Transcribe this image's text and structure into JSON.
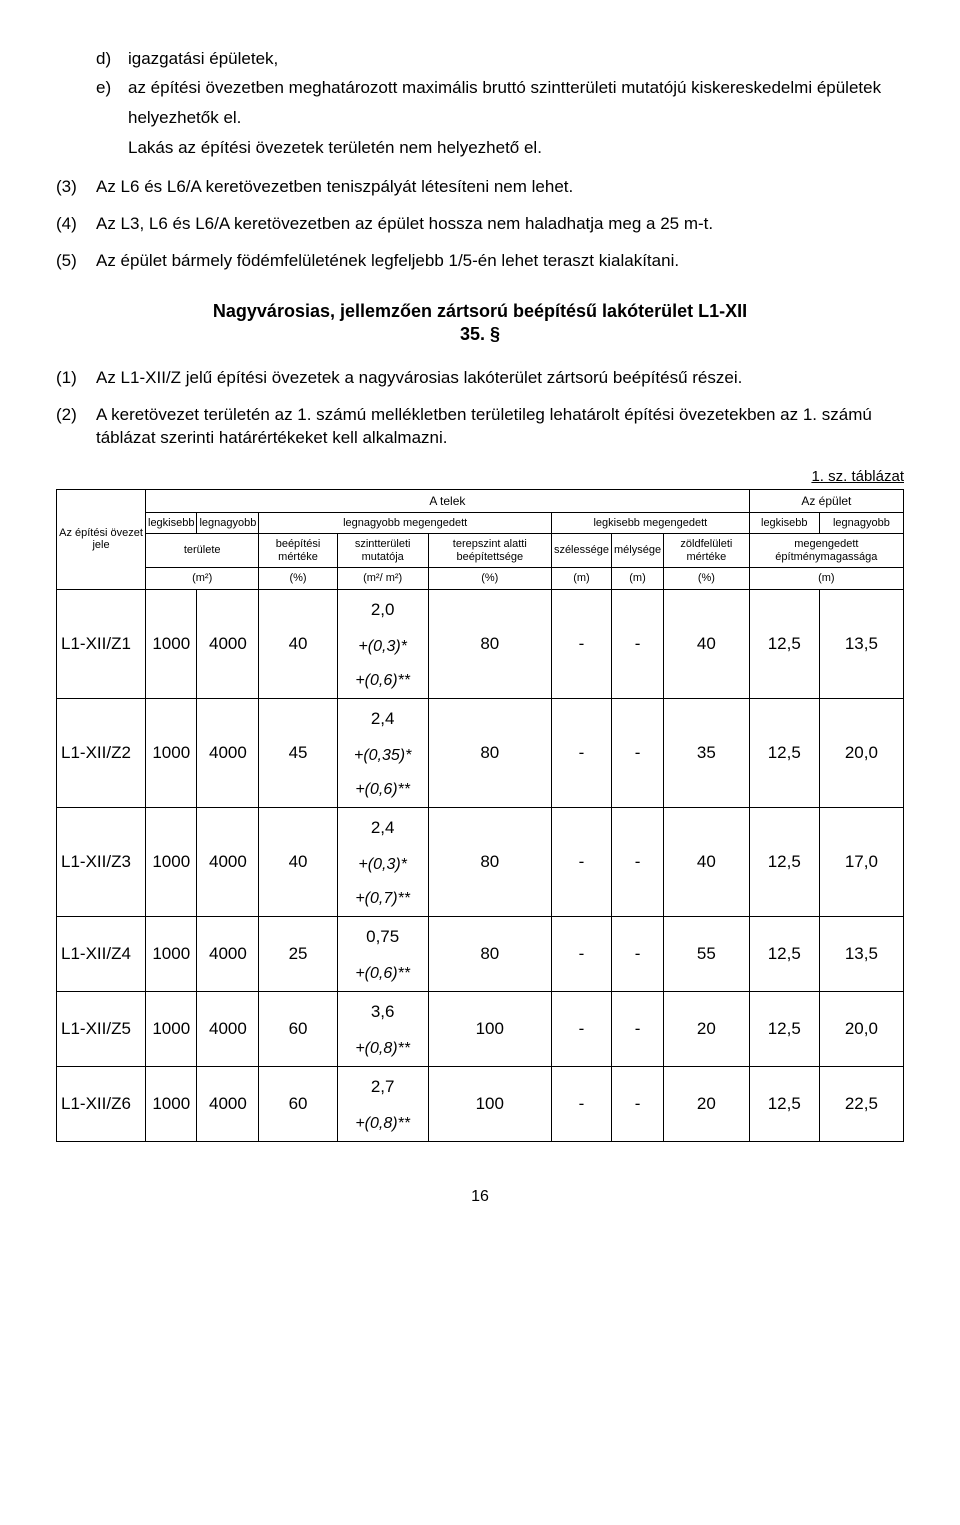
{
  "list_d": {
    "marker": "d)",
    "text": "igazgatási épületek,"
  },
  "list_e": {
    "marker": "e)",
    "text": "az építési övezetben meghatározott maximális bruttó szintterületi mutatójú kiskereskedelmi épületek"
  },
  "after_e1": "helyezhetők el.",
  "after_e2": "Lakás az építési övezetek területén nem helyezhető el.",
  "p3": {
    "marker": "(3)",
    "text": "Az L6 és L6/A keretövezetben  teniszpályát létesíteni nem lehet."
  },
  "p4": {
    "marker": "(4)",
    "text": "Az L3, L6 és L6/A keretövezetben az épület hossza nem haladhatja meg a 25 m-t."
  },
  "p5": {
    "marker": "(5)",
    "text": "Az épület bármely födémfelületének legfeljebb 1/5-én lehet teraszt kialakítani."
  },
  "section_title": "Nagyvárosias, jellemzően zártsorú beépítésű lakóterület L1-XII",
  "section_num": "35. §",
  "p1b": {
    "marker": "(1)",
    "text": "Az L1-XII/Z jelű építési övezetek a nagyvárosias lakóterület zártsorú beépítésű részei."
  },
  "p2b": {
    "marker": "(2)",
    "text": "A keretövezet területén az 1. számú mellékletben területileg lehatárolt építési övezetekben az 1. számú táblázat szerinti határértékeket kell alkalmazni."
  },
  "table_caption": "1. sz. táblázat",
  "headers": {
    "rowlabel": "Az építési övezet jele",
    "telek": "A telek",
    "epulet": "Az épület",
    "legkisebb": "legkisebb",
    "legnagyobb": "legnagyobb",
    "legnagyobb_m": "legnagyobb megengedett",
    "legkisebb_m": "legkisebb megengedett",
    "terulete": "területe",
    "beepitesi": "beépítési mértéke",
    "szint": "szintterületi mutatója",
    "terepszint": "terepszint alatti beépítettsége",
    "szelesseg": "szélessége",
    "melyseg": "mélysége",
    "zold": "zöldfelületi mértéke",
    "megengedett": "megengedett építménymagassága",
    "m2": "(m²)",
    "pct": "(%)",
    "m2m2": "(m²/ m²)",
    "m": "(m)"
  },
  "rows": [
    {
      "zone": "L1-XII/Z1",
      "c1": "1000",
      "c2": "4000",
      "c3": "40",
      "c4": "2,0",
      "c5": "80",
      "c6": "-",
      "c7": "-",
      "c8": "40",
      "c9": "12,5",
      "c10": "13,5",
      "sub": [
        "+(0,3)*",
        "+(0,6)**"
      ]
    },
    {
      "zone": "L1-XII/Z2",
      "c1": "1000",
      "c2": "4000",
      "c3": "45",
      "c4": "2,4",
      "c5": "80",
      "c6": "-",
      "c7": "-",
      "c8": "35",
      "c9": "12,5",
      "c10": "20,0",
      "sub": [
        "+(0,35)*",
        "+(0,6)**"
      ]
    },
    {
      "zone": "L1-XII/Z3",
      "c1": "1000",
      "c2": "4000",
      "c3": "40",
      "c4": "2,4",
      "c5": "80",
      "c6": "-",
      "c7": "-",
      "c8": "40",
      "c9": "12,5",
      "c10": "17,0",
      "sub": [
        "+(0,3)*",
        "+(0,7)**"
      ]
    },
    {
      "zone": "L1-XII/Z4",
      "c1": "1000",
      "c2": "4000",
      "c3": "25",
      "c4": "0,75",
      "c5": "80",
      "c6": "-",
      "c7": "-",
      "c8": "55",
      "c9": "12,5",
      "c10": "13,5",
      "sub": [
        "+(0,6)**"
      ]
    },
    {
      "zone": "L1-XII/Z5",
      "c1": "1000",
      "c2": "4000",
      "c3": "60",
      "c4": "3,6",
      "c5": "100",
      "c6": "-",
      "c7": "-",
      "c8": "20",
      "c9": "12,5",
      "c10": "20,0",
      "sub": [
        "+(0,8)**"
      ]
    },
    {
      "zone": "L1-XII/Z6",
      "c1": "1000",
      "c2": "4000",
      "c3": "60",
      "c4": "2,7",
      "c5": "100",
      "c6": "-",
      "c7": "-",
      "c8": "20",
      "c9": "12,5",
      "c10": "22,5",
      "sub": [
        "+(0,8)**"
      ]
    }
  ],
  "pagenum": "16"
}
